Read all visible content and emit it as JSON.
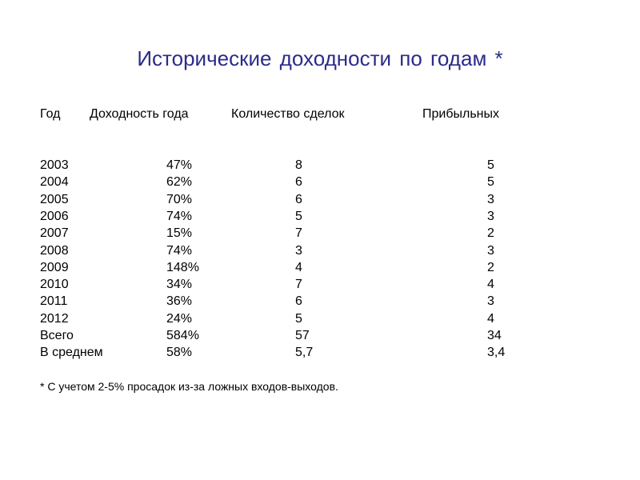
{
  "title": "Исторические доходности по годам *",
  "table": {
    "header": [
      "Год",
      "Доходность года",
      "Количество сделок",
      "Прибыльных"
    ],
    "rows": [
      [
        "2003",
        "47%",
        "8",
        "5"
      ],
      [
        "2004",
        "62%",
        "6",
        "5"
      ],
      [
        "2005",
        "70%",
        "6",
        "3"
      ],
      [
        "2006",
        "74%",
        "5",
        "3"
      ],
      [
        "2007",
        "15%",
        "7",
        "2"
      ],
      [
        "2008",
        "74%",
        "3",
        "3"
      ],
      [
        "2009",
        "148%",
        "4",
        "2"
      ],
      [
        "2010",
        "34%",
        "7",
        "4"
      ],
      [
        "2011",
        "36%",
        "6",
        "3"
      ],
      [
        "2012",
        "24%",
        "5",
        "4"
      ],
      [
        "Всего",
        "584%",
        "57",
        "34"
      ],
      [
        "В среднем",
        "58%",
        "5,7",
        "3,4"
      ]
    ]
  },
  "footnote": "* С учетом 2-5% просадок из-за ложных входов-выходов."
}
